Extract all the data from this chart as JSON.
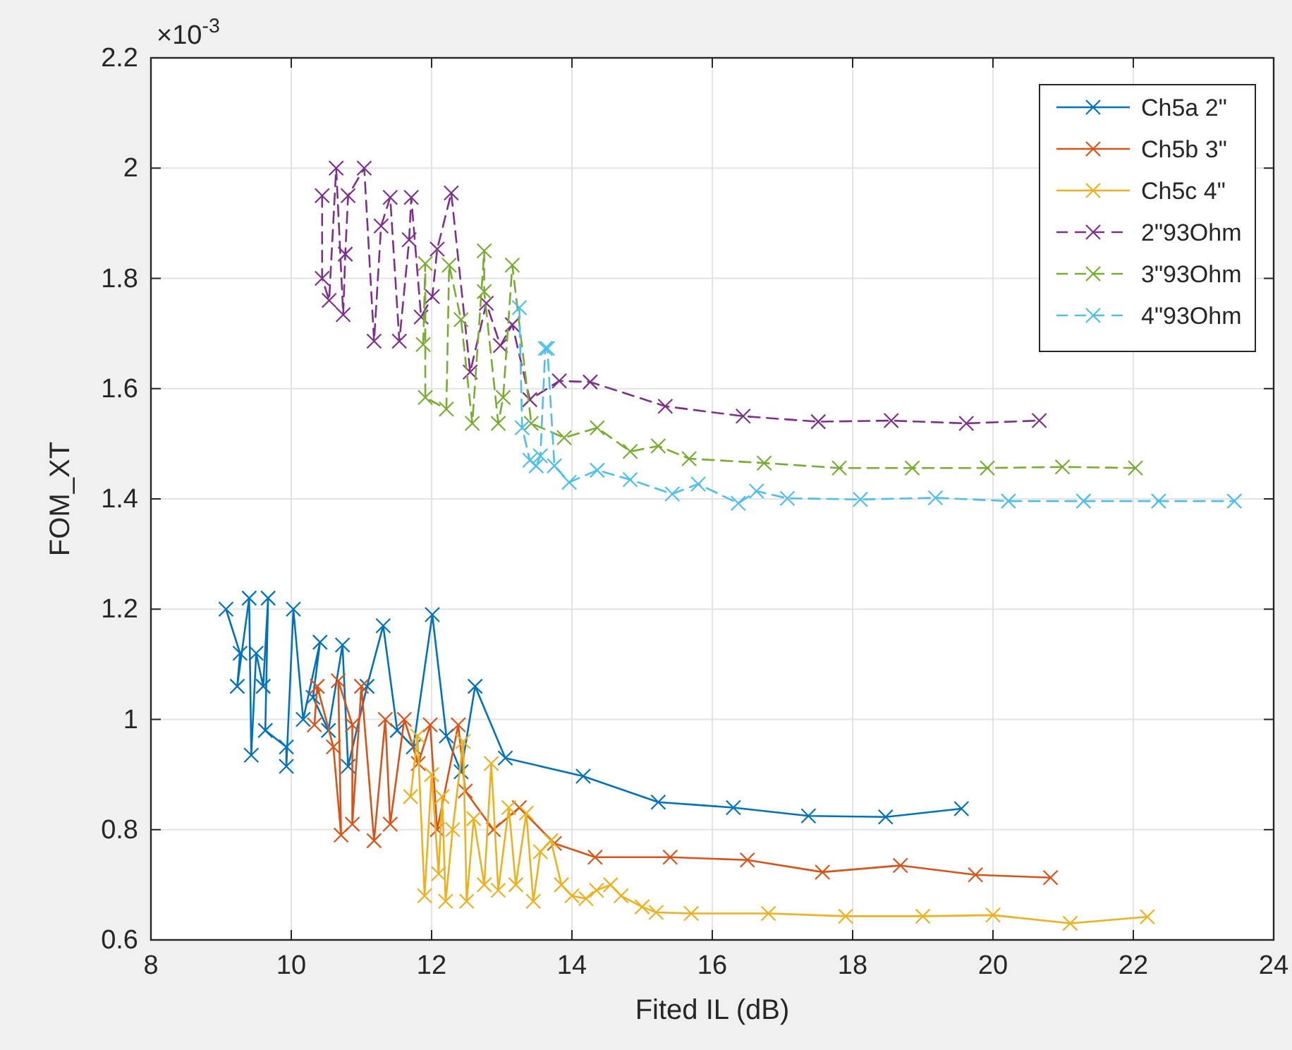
{
  "chart_data": {
    "type": "line",
    "xlabel": "Fited IL (dB)",
    "ylabel": "FOM_XT",
    "annotations": [
      "×10$^{-3}$"
    ],
    "xlim": [
      8,
      24
    ],
    "xticks": [
      8,
      10,
      12,
      14,
      16,
      18,
      20,
      22,
      24
    ],
    "ylim": [
      0.6,
      2.2
    ],
    "yticks": [
      0.6,
      0.8,
      1,
      1.2,
      1.4,
      1.6,
      1.8,
      2,
      2.2
    ],
    "grid": true,
    "legend": "top right",
    "marker": "cross",
    "series": [
      {
        "name": "Ch5a 2\"",
        "color": "#0072bd",
        "line_style": "solid",
        "x": [
          9.07,
          9.27,
          9.23,
          9.4,
          9.43,
          9.5,
          9.6,
          9.67,
          9.63,
          9.93,
          9.93,
          10.03,
          10.17,
          10.41,
          10.31,
          10.53,
          10.73,
          10.81,
          11.08,
          11.31,
          11.51,
          11.74,
          12.01,
          12.21,
          12.42,
          12.62,
          13.05,
          14.16,
          15.23,
          16.3,
          17.37,
          18.47,
          19.55
        ],
        "values": [
          1.2,
          1.12,
          1.06,
          1.22,
          0.935,
          1.12,
          1.06,
          1.22,
          0.98,
          0.95,
          0.915,
          1.2,
          1.0,
          1.14,
          1.04,
          0.98,
          1.135,
          0.915,
          1.06,
          1.17,
          0.98,
          0.95,
          1.19,
          0.97,
          0.905,
          1.06,
          0.93,
          0.897,
          0.85,
          0.84,
          0.825,
          0.823,
          0.838
        ]
      },
      {
        "name": "Ch5b 3\"",
        "color": "#d95319",
        "line_style": "solid",
        "x": [
          10.33,
          10.37,
          10.6,
          10.71,
          10.67,
          10.87,
          10.87,
          11.0,
          11.18,
          11.34,
          11.41,
          11.61,
          11.81,
          11.98,
          12.08,
          12.38,
          12.48,
          12.88,
          13.25,
          13.75,
          14.33,
          15.4,
          16.5,
          17.57,
          18.68,
          19.75,
          20.82
        ],
        "values": [
          0.99,
          1.06,
          0.95,
          0.79,
          1.07,
          0.99,
          0.81,
          1.06,
          0.78,
          1.0,
          0.81,
          1.0,
          0.92,
          0.99,
          0.8,
          0.99,
          0.87,
          0.8,
          0.84,
          0.775,
          0.75,
          0.75,
          0.745,
          0.723,
          0.735,
          0.718,
          0.713
        ]
      },
      {
        "name": "Ch5c 4\"",
        "color": "#edb120",
        "line_style": "solid",
        "x": [
          11.7,
          11.8,
          11.9,
          12.0,
          12.1,
          12.15,
          12.2,
          12.3,
          12.45,
          12.5,
          12.6,
          12.75,
          12.85,
          12.95,
          13.1,
          13.2,
          13.35,
          13.45,
          13.55,
          13.7,
          13.85,
          14.0,
          14.2,
          14.35,
          14.55,
          14.7,
          15.0,
          15.2,
          15.7,
          16.8,
          17.9,
          19.0,
          20.0,
          21.1,
          22.2
        ],
        "values": [
          0.86,
          0.97,
          0.68,
          0.9,
          0.72,
          0.86,
          0.67,
          0.8,
          0.96,
          0.67,
          0.82,
          0.7,
          0.92,
          0.69,
          0.84,
          0.7,
          0.83,
          0.67,
          0.76,
          0.78,
          0.7,
          0.68,
          0.675,
          0.69,
          0.7,
          0.68,
          0.66,
          0.65,
          0.648,
          0.648,
          0.643,
          0.643,
          0.645,
          0.63,
          0.642
        ]
      },
      {
        "name": "2\"93Ohm",
        "color": "#7e2f8e",
        "line_style": "dashed",
        "x": [
          10.44,
          10.44,
          10.54,
          10.64,
          10.74,
          10.77,
          10.81,
          11.04,
          11.18,
          11.28,
          11.41,
          11.54,
          11.68,
          11.71,
          11.85,
          12.01,
          12.08,
          12.28,
          12.55,
          12.78,
          12.98,
          13.15,
          13.4,
          13.82,
          14.26,
          15.33,
          16.44,
          17.51,
          18.55,
          19.62,
          20.66
        ],
        "values": [
          1.95,
          1.8,
          1.76,
          2.0,
          1.734,
          1.844,
          1.95,
          2.0,
          1.686,
          1.895,
          1.947,
          1.686,
          1.87,
          1.947,
          1.73,
          1.767,
          1.853,
          1.955,
          1.63,
          1.755,
          1.678,
          1.716,
          1.58,
          1.614,
          1.612,
          1.568,
          1.55,
          1.54,
          1.542,
          1.537,
          1.542
        ]
      },
      {
        "name": "3\"93Ohm",
        "color": "#77ac30",
        "line_style": "dashed",
        "x": [
          11.88,
          11.91,
          11.91,
          12.21,
          12.25,
          12.42,
          12.58,
          12.75,
          12.75,
          12.95,
          13.02,
          13.15,
          13.42,
          13.89,
          14.36,
          14.83,
          15.23,
          15.67,
          16.74,
          17.81,
          18.85,
          19.92,
          20.99,
          22.03
        ],
        "values": [
          1.68,
          1.827,
          1.584,
          1.563,
          1.824,
          1.725,
          1.537,
          1.85,
          1.776,
          1.537,
          1.584,
          1.824,
          1.537,
          1.511,
          1.529,
          1.486,
          1.496,
          1.473,
          1.465,
          1.456,
          1.456,
          1.456,
          1.458,
          1.456
        ]
      },
      {
        "name": "4\"93Ohm",
        "color": "#4dbeee",
        "line_style": "dashed",
        "x": [
          13.25,
          13.29,
          13.4,
          13.49,
          13.55,
          13.62,
          13.65,
          13.75,
          13.96,
          14.36,
          14.83,
          15.43,
          15.8,
          16.37,
          16.63,
          17.07,
          18.11,
          19.18,
          20.22,
          21.29,
          22.36,
          23.44
        ],
        "values": [
          1.747,
          1.529,
          1.47,
          1.46,
          1.478,
          1.673,
          1.673,
          1.46,
          1.43,
          1.452,
          1.435,
          1.409,
          1.427,
          1.392,
          1.414,
          1.401,
          1.399,
          1.402,
          1.396,
          1.396,
          1.396,
          1.396
        ]
      }
    ]
  }
}
